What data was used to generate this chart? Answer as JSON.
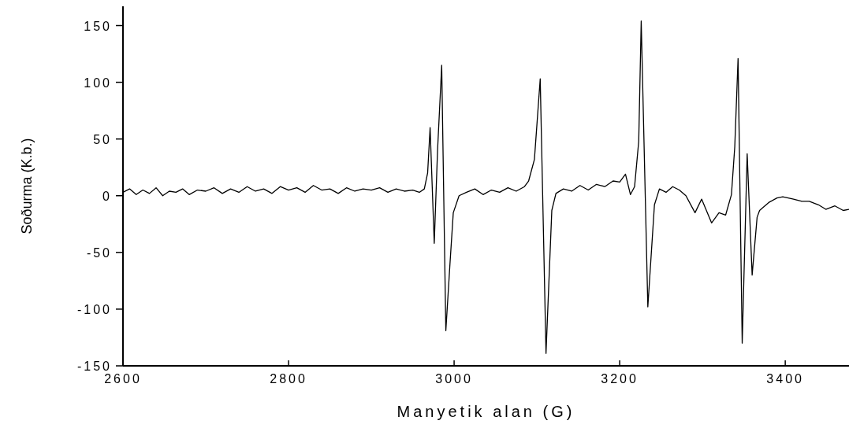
{
  "chart_data": {
    "type": "line",
    "xlabel": "Manyetik alan (G)",
    "ylabel": "Soðurma (K.b.)",
    "xlim": [
      2600,
      3477
    ],
    "ylim": [
      -150,
      167
    ],
    "xticks": [
      2600,
      2800,
      3000,
      3200,
      3400
    ],
    "yticks": [
      -150,
      -100,
      -50,
      0,
      50,
      100,
      150
    ],
    "grid": false,
    "marker": "none",
    "line_style": "solid",
    "series": [
      {
        "color": "#000000",
        "x": [
          2600,
          2608,
          2616,
          2624,
          2632,
          2640,
          2648,
          2656,
          2664,
          2672,
          2680,
          2690,
          2700,
          2710,
          2720,
          2730,
          2740,
          2750,
          2760,
          2770,
          2780,
          2790,
          2800,
          2810,
          2820,
          2830,
          2840,
          2850,
          2860,
          2870,
          2880,
          2890,
          2900,
          2910,
          2920,
          2930,
          2940,
          2950,
          2958,
          2964,
          2968,
          2971,
          2976,
          2980,
          2985,
          2990,
          2995,
          2999,
          3006,
          3015,
          3025,
          3035,
          3045,
          3055,
          3065,
          3075,
          3085,
          3090,
          3097,
          3104,
          3111,
          3118,
          3123,
          3132,
          3142,
          3152,
          3162,
          3172,
          3182,
          3192,
          3200,
          3207,
          3213,
          3218,
          3223,
          3226,
          3234,
          3242,
          3248,
          3256,
          3264,
          3272,
          3280,
          3291,
          3299,
          3311,
          3320,
          3328,
          3335,
          3339,
          3343,
          3348,
          3354,
          3360,
          3366,
          3369,
          3380,
          3390,
          3397,
          3410,
          3420,
          3429,
          3440,
          3449,
          3460,
          3470,
          3477
        ],
        "values": [
          3,
          6,
          1,
          5,
          2,
          7,
          0,
          4,
          3,
          6,
          1,
          5,
          4,
          7,
          2,
          6,
          3,
          8,
          4,
          6,
          2,
          8,
          5,
          7,
          3,
          9,
          5,
          6,
          2,
          7,
          4,
          6,
          5,
          7,
          3,
          6,
          4,
          5,
          3,
          6,
          20,
          60,
          -42,
          40,
          115,
          -119,
          -60,
          -15,
          0,
          3,
          6,
          1,
          5,
          3,
          7,
          4,
          8,
          13,
          32,
          103,
          -139,
          -13,
          2,
          6,
          4,
          9,
          5,
          10,
          8,
          13,
          12,
          19,
          1,
          8,
          48,
          154,
          -98,
          -8,
          6,
          3,
          8,
          5,
          0,
          -15,
          -3,
          -24,
          -15,
          -17,
          1,
          43,
          121,
          -130,
          37,
          -70,
          -19,
          -13,
          -6,
          -2,
          -1,
          -3,
          -5,
          -5,
          -8,
          -12,
          -9,
          -13,
          -12
        ]
      }
    ]
  }
}
